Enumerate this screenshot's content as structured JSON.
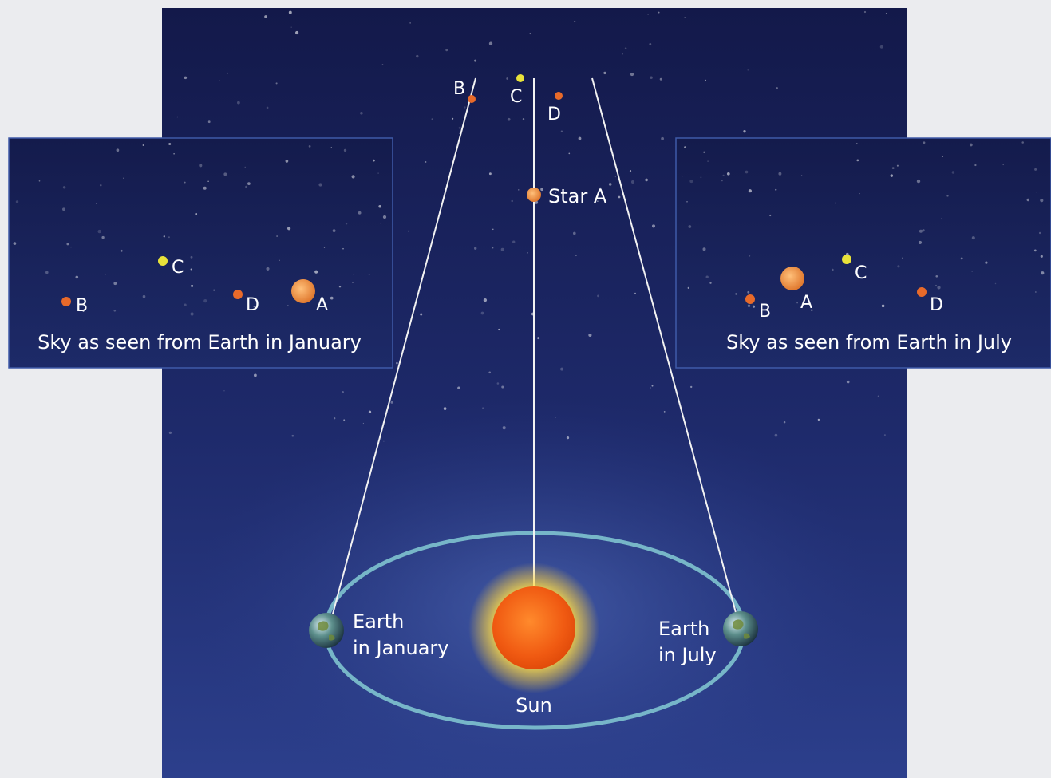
{
  "colors": {
    "sky_top": "#13194a",
    "sky_bottom": "#2c3f8c",
    "orbit": "#7fc3cf",
    "sight_line": "#f2f2f2",
    "star_orange": "#e86a2a",
    "star_yellow": "#e8e23a",
    "sun_core": "#f05a12",
    "sun_glow": "#ffe24a"
  },
  "main": {
    "stars": [
      {
        "label": "B",
        "color": "orange"
      },
      {
        "label": "C",
        "color": "yellow"
      },
      {
        "label": "D",
        "color": "orange"
      }
    ],
    "star_a_label": "Star A",
    "earth_january_line1": "Earth",
    "earth_january_line2": "in January",
    "earth_july_line1": "Earth",
    "earth_july_line2": "in July",
    "sun_label": "Sun"
  },
  "panel_january": {
    "caption": "Sky as seen from Earth in January",
    "stars": [
      {
        "label": "C"
      },
      {
        "label": "B"
      },
      {
        "label": "D"
      },
      {
        "label": "A"
      }
    ]
  },
  "panel_july": {
    "caption": "Sky as seen from Earth in July",
    "stars": [
      {
        "label": "C"
      },
      {
        "label": "B"
      },
      {
        "label": "A"
      },
      {
        "label": "D"
      }
    ]
  }
}
